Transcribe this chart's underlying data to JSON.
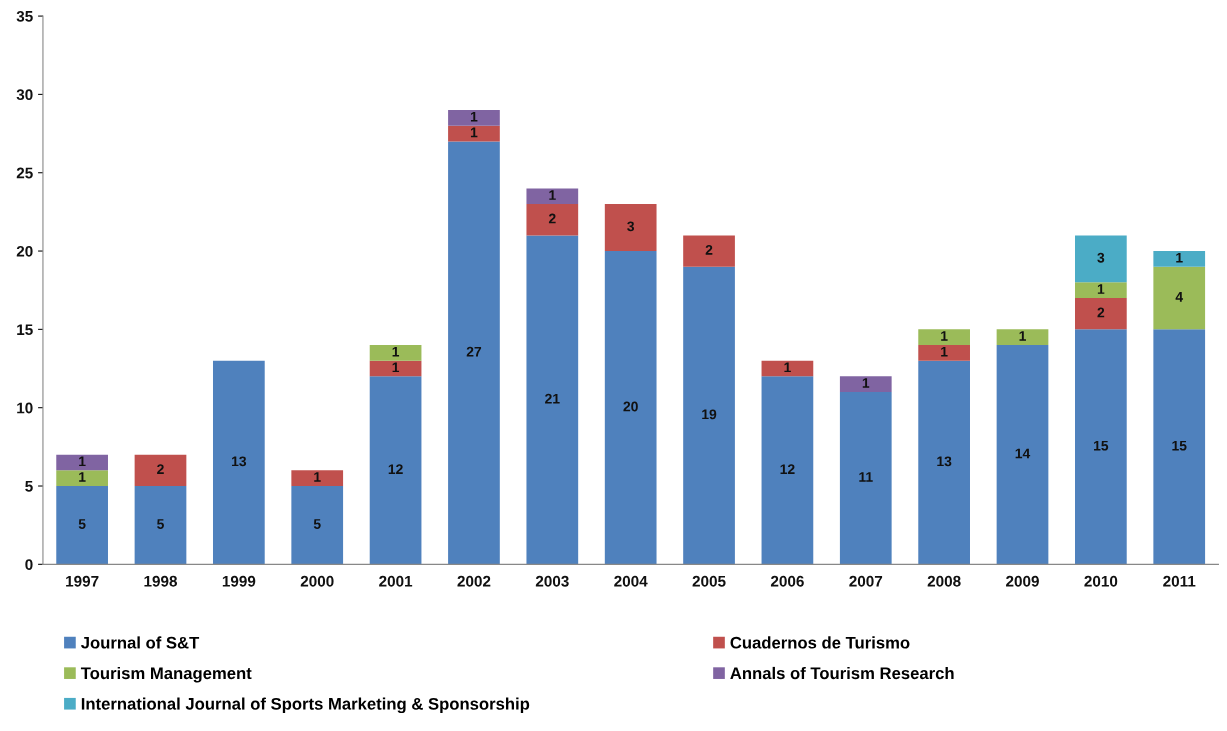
{
  "chart_data": {
    "type": "bar",
    "stacked": true,
    "categories": [
      "1997",
      "1998",
      "1999",
      "2000",
      "2001",
      "2002",
      "2003",
      "2004",
      "2005",
      "2006",
      "2007",
      "2008",
      "2009",
      "2010",
      "2011"
    ],
    "series": [
      {
        "name": "Journal of S&T",
        "color": "#4f81bd",
        "values": [
          5,
          5,
          13,
          5,
          12,
          27,
          21,
          20,
          19,
          12,
          11,
          13,
          14,
          15,
          15
        ]
      },
      {
        "name": "Cuadernos de Turismo",
        "color": "#c0504d",
        "values": [
          null,
          2,
          null,
          1,
          1,
          1,
          2,
          3,
          2,
          1,
          null,
          1,
          null,
          2,
          null
        ]
      },
      {
        "name": "Tourism Management",
        "color": "#9bbb59",
        "values": [
          1,
          null,
          null,
          null,
          1,
          null,
          null,
          null,
          null,
          null,
          null,
          1,
          1,
          1,
          4
        ]
      },
      {
        "name": "Annals of Tourism Research",
        "color": "#8064a2",
        "values": [
          1,
          null,
          null,
          null,
          null,
          1,
          1,
          null,
          null,
          null,
          1,
          null,
          null,
          null,
          null
        ]
      },
      {
        "name": "International Journal of Sports Marketing & Sponsorship",
        "color": "#4bacc6",
        "values": [
          null,
          null,
          null,
          null,
          null,
          null,
          null,
          null,
          null,
          null,
          null,
          null,
          null,
          3,
          1
        ]
      }
    ],
    "ylim": [
      0,
      35
    ],
    "yticks": [
      0,
      5,
      10,
      15,
      20,
      25,
      30,
      35
    ],
    "grid": false,
    "legend": "bottom",
    "data_labels": true
  }
}
